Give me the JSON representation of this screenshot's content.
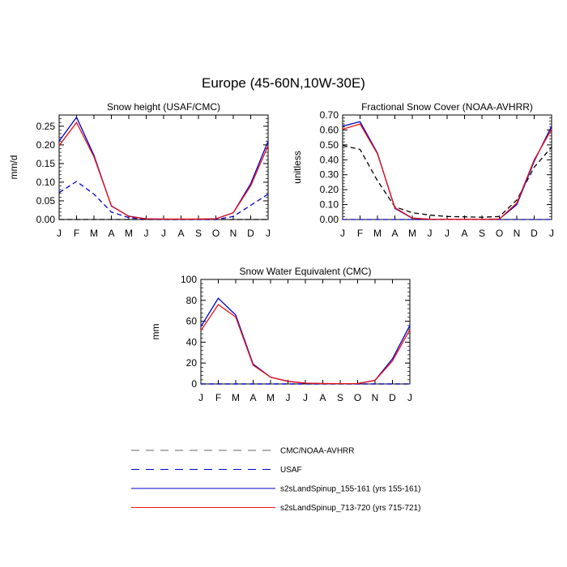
{
  "title": "Europe (45-60N,10W-30E)",
  "months": [
    "J",
    "F",
    "M",
    "A",
    "M",
    "J",
    "J",
    "A",
    "S",
    "O",
    "N",
    "D",
    "J"
  ],
  "legend": [
    {
      "label": "CMC/NOAA-AVHRR",
      "color": "#000000",
      "dash": true
    },
    {
      "label": "USAF",
      "color": "#0000cc",
      "dash": true
    },
    {
      "label": "s2sLandSpinup_155-161 (yrs 155-161)",
      "color": "#0000cc",
      "dash": false
    },
    {
      "label": "s2sLandSpinup_713-720 (yrs 715-721)",
      "color": "#ee1111",
      "dash": false
    }
  ],
  "chart_data": [
    {
      "type": "line",
      "title": "Snow height (USAF/CMC)",
      "ylabel": "mm/d",
      "xlabel": "",
      "ylim": [
        0,
        0.28
      ],
      "yticks": [
        "0.00",
        "0.05",
        "0.10",
        "0.15",
        "0.20",
        "0.25"
      ],
      "ytick_values": [
        0,
        0.05,
        0.1,
        0.15,
        0.2,
        0.25
      ],
      "categories": [
        "J",
        "F",
        "M",
        "A",
        "M",
        "J",
        "J",
        "A",
        "S",
        "O",
        "N",
        "D",
        "J"
      ],
      "series": [
        {
          "name": "CMC/NOAA-AVHRR",
          "color": "#000000",
          "dash": true,
          "values": [
            0.0,
            0.0,
            0.0,
            0.0,
            0.0,
            0.0,
            0.0,
            0.0,
            0.0,
            0.0,
            0.0,
            0.0,
            0.0
          ]
        },
        {
          "name": "USAF",
          "color": "#0000cc",
          "dash": true,
          "values": [
            0.072,
            0.102,
            0.068,
            0.02,
            0.005,
            0.001,
            0.0,
            0.0,
            0.0,
            0.0,
            0.008,
            0.038,
            0.068
          ]
        },
        {
          "name": "s2sLandSpinup_155-161 (yrs 155-161)",
          "color": "#0000cc",
          "dash": false,
          "values": [
            0.21,
            0.274,
            0.172,
            0.036,
            0.009,
            0.002,
            0.001,
            0.001,
            0.001,
            0.002,
            0.018,
            0.096,
            0.21
          ]
        },
        {
          "name": "s2sLandSpinup_713-720 (yrs 715-721)",
          "color": "#ee1111",
          "dash": false,
          "values": [
            0.198,
            0.26,
            0.168,
            0.037,
            0.008,
            0.002,
            0.001,
            0.001,
            0.001,
            0.002,
            0.018,
            0.09,
            0.198
          ]
        }
      ]
    },
    {
      "type": "line",
      "title": "Fractional Snow Cover (NOAA-AVHRR)",
      "ylabel": "unitless",
      "xlabel": "",
      "ylim": [
        0,
        0.7
      ],
      "yticks": [
        "0.00",
        "0.10",
        "0.20",
        "0.30",
        "0.40",
        "0.50",
        "0.60",
        "0.70"
      ],
      "ytick_values": [
        0,
        0.1,
        0.2,
        0.3,
        0.4,
        0.5,
        0.6,
        0.7
      ],
      "categories": [
        "J",
        "F",
        "M",
        "A",
        "M",
        "J",
        "J",
        "A",
        "S",
        "O",
        "N",
        "D",
        "J"
      ],
      "series": [
        {
          "name": "CMC/NOAA-AVHRR",
          "color": "#000000",
          "dash": true,
          "values": [
            0.495,
            0.47,
            0.26,
            0.085,
            0.045,
            0.03,
            0.02,
            0.018,
            0.015,
            0.02,
            0.13,
            0.35,
            0.485
          ]
        },
        {
          "name": "USAF",
          "color": "#0000cc",
          "dash": true,
          "values": [
            0.0,
            0.0,
            0.0,
            0.0,
            0.0,
            0.0,
            0.0,
            0.0,
            0.0,
            0.0,
            0.0,
            0.0,
            0.0
          ]
        },
        {
          "name": "s2sLandSpinup_155-161 (yrs 155-161)",
          "color": "#0000cc",
          "dash": false,
          "values": [
            0.625,
            0.655,
            0.445,
            0.075,
            0.008,
            0.002,
            0.001,
            0.001,
            0.001,
            0.003,
            0.1,
            0.39,
            0.625
          ]
        },
        {
          "name": "s2sLandSpinup_713-720 (yrs 715-721)",
          "color": "#ee1111",
          "dash": false,
          "values": [
            0.605,
            0.64,
            0.44,
            0.08,
            0.01,
            0.002,
            0.001,
            0.001,
            0.001,
            0.003,
            0.11,
            0.4,
            0.605
          ]
        }
      ]
    },
    {
      "type": "line",
      "title": "Snow Water Equivalent (CMC)",
      "ylabel": "mm",
      "xlabel": "",
      "ylim": [
        0,
        100
      ],
      "yticks": [
        "0",
        "20",
        "40",
        "60",
        "80",
        "100"
      ],
      "ytick_values": [
        0,
        20,
        40,
        60,
        80,
        100
      ],
      "categories": [
        "J",
        "F",
        "M",
        "A",
        "M",
        "J",
        "J",
        "A",
        "S",
        "O",
        "N",
        "D",
        "J"
      ],
      "series": [
        {
          "name": "CMC/NOAA-AVHRR",
          "color": "#000000",
          "dash": true,
          "values": [
            0,
            0,
            0,
            0,
            0,
            0,
            0,
            0,
            0,
            0,
            0,
            0,
            0
          ]
        },
        {
          "name": "USAF",
          "color": "#0000cc",
          "dash": true,
          "values": [
            0,
            0,
            0,
            0,
            0,
            0,
            0,
            0,
            0,
            0,
            0,
            0,
            0
          ]
        },
        {
          "name": "s2sLandSpinup_155-161 (yrs 155-161)",
          "color": "#0000cc",
          "dash": false,
          "values": [
            55,
            82,
            66,
            19,
            6.5,
            2.5,
            0.8,
            0.4,
            0.3,
            0.4,
            3.5,
            24,
            56
          ]
        },
        {
          "name": "s2sLandSpinup_713-720 (yrs 715-721)",
          "color": "#ee1111",
          "dash": false,
          "values": [
            51,
            76,
            64,
            18,
            6.5,
            2.5,
            0.8,
            0.4,
            0.3,
            0.4,
            3.3,
            22,
            52
          ]
        }
      ]
    }
  ]
}
